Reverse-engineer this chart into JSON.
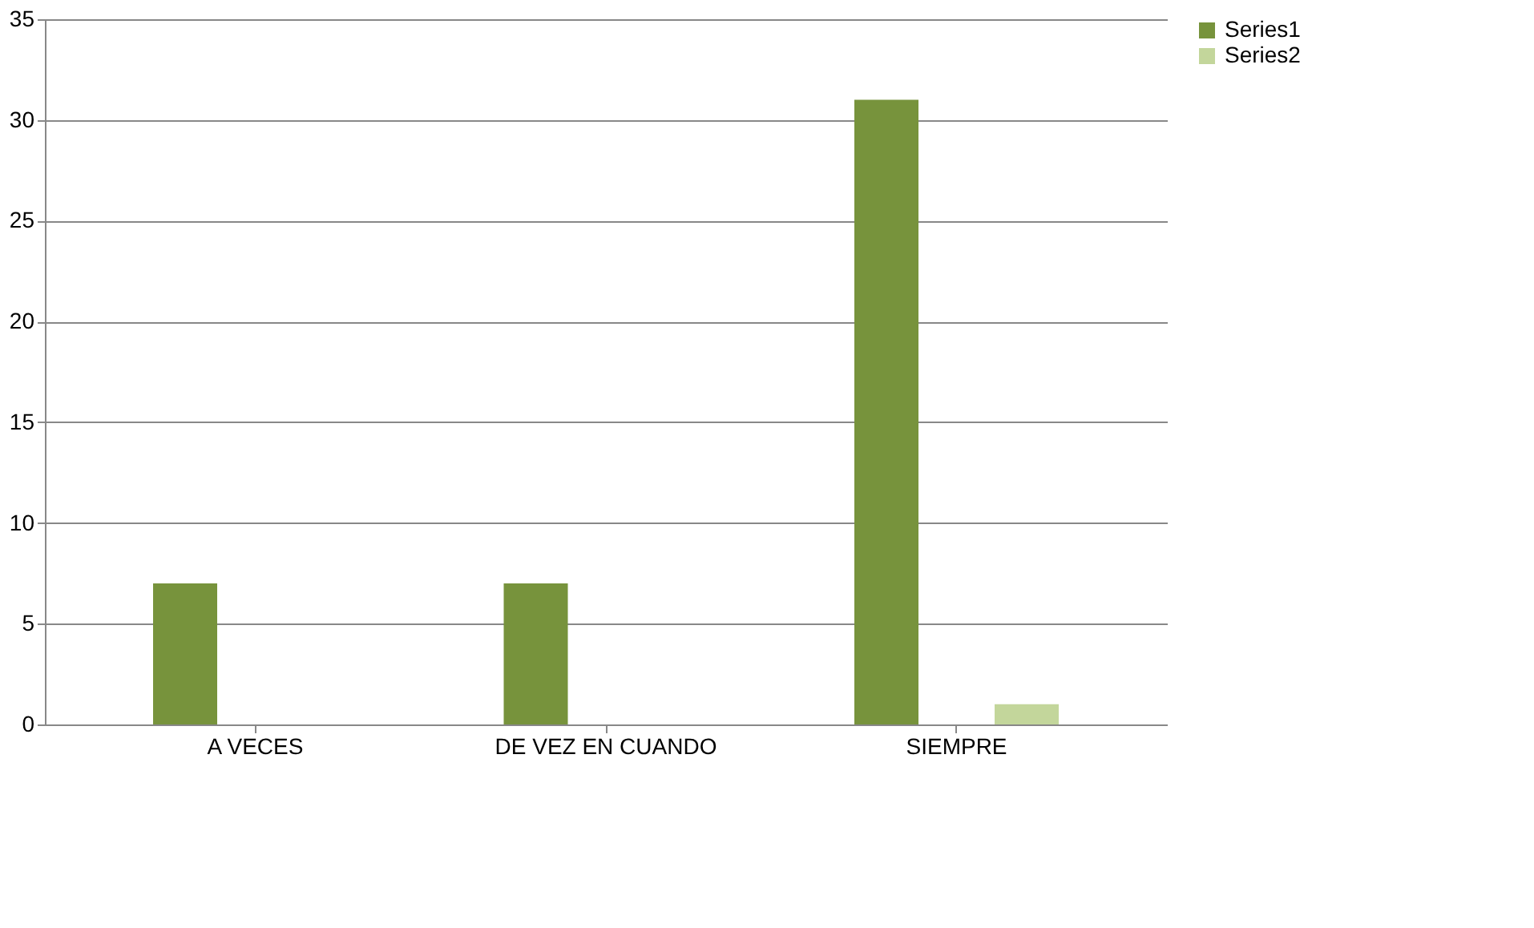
{
  "chart_data": {
    "type": "bar",
    "categories": [
      "A VECES",
      "DE VEZ EN CUANDO",
      "SIEMPRE"
    ],
    "series": [
      {
        "name": "Series1",
        "color": "#77933c",
        "values": [
          7,
          7,
          31
        ]
      },
      {
        "name": "Series2",
        "color": "#c3d69b",
        "values": [
          0,
          0,
          1
        ]
      }
    ],
    "ylim": [
      0,
      35
    ],
    "yticks": [
      0,
      5,
      10,
      15,
      20,
      25,
      30,
      35
    ],
    "grid": "y",
    "legend": "right"
  }
}
